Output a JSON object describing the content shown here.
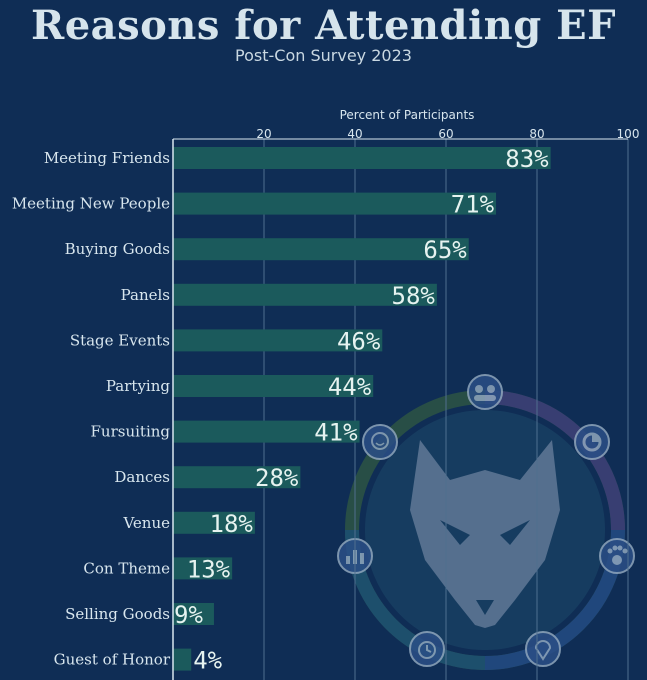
{
  "title": "Reasons for Attending EF",
  "subtitle": "Post-Con Survey 2023",
  "colors": {
    "background": "#0f2d55",
    "bar": "#1b5a5c",
    "text": "#d8e6ee"
  },
  "chart_data": {
    "type": "bar",
    "orientation": "horizontal",
    "title": "Reasons for Attending EF",
    "subtitle": "Post-Con Survey 2023",
    "xlabel": "Percent of Participants",
    "xlim": [
      0,
      100
    ],
    "xticks": [
      20,
      40,
      60,
      80,
      100
    ],
    "grid": true,
    "categories": [
      "Meeting Friends",
      "Meeting New People",
      "Buying Goods",
      "Panels",
      "Stage Events",
      "Partying",
      "Fursuiting",
      "Dances",
      "Venue",
      "Con Theme",
      "Selling Goods",
      "Guest of Honor"
    ],
    "values": [
      83,
      71,
      65,
      58,
      46,
      44,
      41,
      28,
      18,
      13,
      9,
      4
    ],
    "value_labels": [
      "83%",
      "71%",
      "65%",
      "58%",
      "46%",
      "44%",
      "41%",
      "28%",
      "18%",
      "13%",
      "9%",
      "4%"
    ]
  },
  "decoration": {
    "logo": "wolf-head-emblem",
    "ring_icons": [
      "group-icon",
      "pie-chart-icon",
      "paw-icon",
      "location-pin-icon",
      "alarm-clock-icon",
      "bar-chart-icon",
      "chat-bubble-icon"
    ]
  }
}
